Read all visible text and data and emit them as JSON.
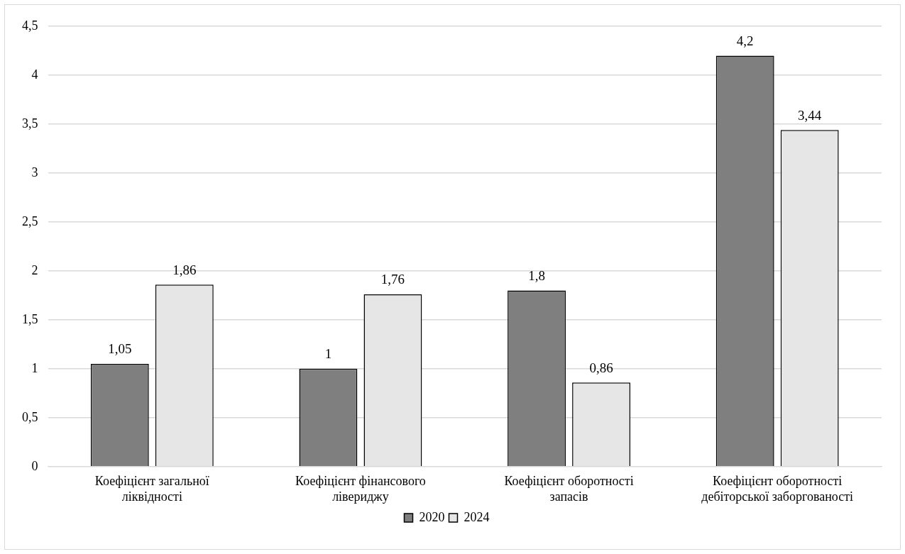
{
  "chart_data": {
    "type": "bar",
    "categories": [
      "Коефіцієнт загальної ліквідності",
      "Коефіцієнт фінансового лівериджу",
      "Коефіцієнт оборотності запасів",
      "Коефіцієнт оборотності дебіторської заборгованості"
    ],
    "series": [
      {
        "name": "2020",
        "color": "#7f7f7f",
        "values": [
          1.05,
          1,
          1.8,
          4.2
        ],
        "value_labels": [
          "1,05",
          "1",
          "1,8",
          "4,2"
        ]
      },
      {
        "name": "2024",
        "color": "#e6e6e6",
        "values": [
          1.86,
          1.76,
          0.86,
          3.44
        ],
        "value_labels": [
          "1,86",
          "1,76",
          "0,86",
          "3,44"
        ]
      }
    ],
    "ylim": [
      0,
      4.5
    ],
    "yticks": [
      0,
      {
        "value": 0.5,
        "label": "0,5"
      },
      1,
      {
        "value": 1.5,
        "label": "1,5"
      },
      2,
      {
        "value": 2.5,
        "label": "2,5"
      },
      3,
      {
        "value": 3.5,
        "label": "3,5"
      },
      4,
      {
        "value": 4.5,
        "label": "4,5"
      }
    ],
    "grid": "y",
    "legend": "bottom"
  }
}
